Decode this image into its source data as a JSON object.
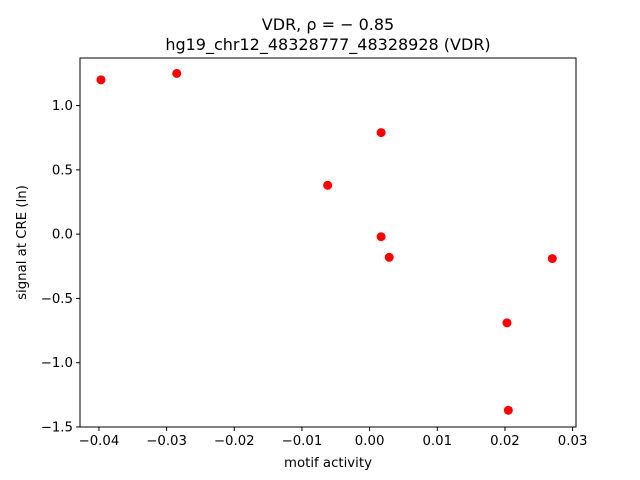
{
  "chart_data": {
    "type": "scatter",
    "title_line1": "VDR, ρ = − 0.85",
    "title_line2": "hg19_chr12_48328777_48328928 (VDR)",
    "xlabel": "motif activity",
    "ylabel": "signal at CRE (ln)",
    "xlim": [
      -0.0428,
      0.0305
    ],
    "ylim": [
      -1.5,
      1.37
    ],
    "xticks": [
      -0.04,
      -0.03,
      -0.02,
      -0.01,
      0.0,
      0.01,
      0.02,
      0.03
    ],
    "xtick_labels": [
      "−0.04",
      "−0.03",
      "−0.02",
      "−0.01",
      "0.00",
      "0.01",
      "0.02",
      "0.03"
    ],
    "yticks": [
      -1.5,
      -1.0,
      -0.5,
      0.0,
      0.5,
      1.0
    ],
    "ytick_labels": [
      "−1.5",
      "−1.0",
      "−0.5",
      "0.0",
      "0.5",
      "1.0"
    ],
    "grid": false,
    "marker_color": "#ff0000",
    "points": [
      {
        "x": -0.0397,
        "y": 1.2
      },
      {
        "x": -0.0285,
        "y": 1.25
      },
      {
        "x": -0.0062,
        "y": 0.38
      },
      {
        "x": 0.0017,
        "y": 0.79
      },
      {
        "x": 0.0017,
        "y": -0.02
      },
      {
        "x": 0.0029,
        "y": -0.18
      },
      {
        "x": 0.0203,
        "y": -0.69
      },
      {
        "x": 0.0205,
        "y": -1.37
      },
      {
        "x": 0.027,
        "y": -0.19
      }
    ]
  }
}
